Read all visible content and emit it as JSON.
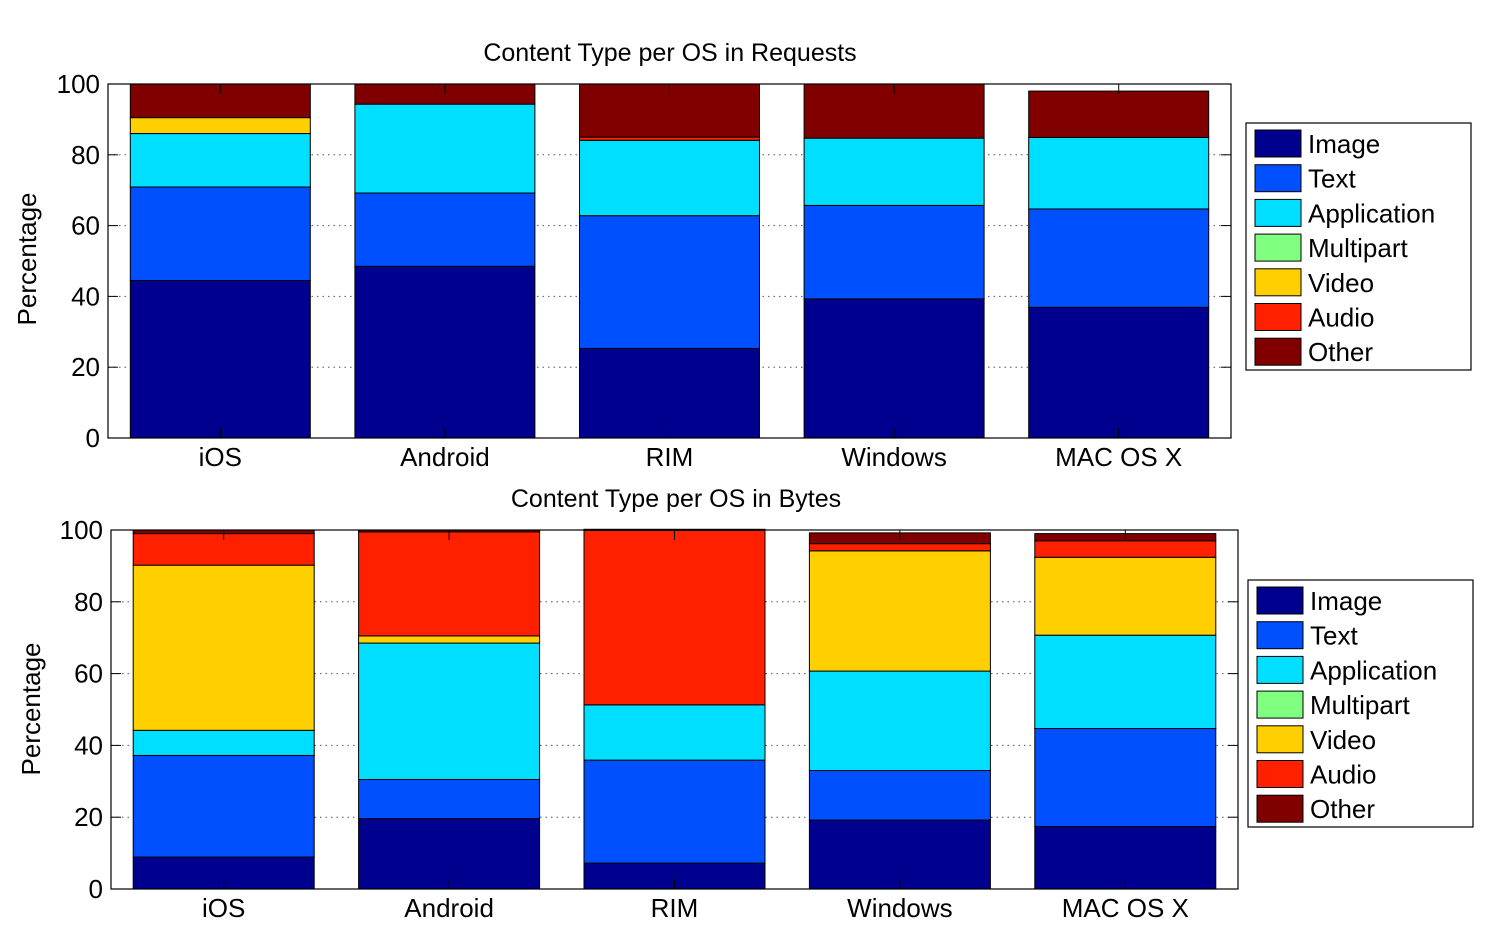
{
  "colors": {
    "Image": "#00008f",
    "Text": "#0050ff",
    "Application": "#00dfff",
    "Multipart": "#80ff80",
    "Video": "#ffcf00",
    "Audio": "#ff2000",
    "Other": "#800000"
  },
  "chart_data": [
    {
      "type": "bar",
      "stacked": true,
      "title": "Content Type per OS in Requests",
      "xlabel": "",
      "ylabel": "Percentage",
      "ylim": [
        0,
        100
      ],
      "yticks": [
        0,
        20,
        40,
        60,
        80,
        100
      ],
      "grid": "dotted-horizontal",
      "legend_position": "right",
      "categories": [
        "iOS",
        "Android",
        "RIM",
        "Windows",
        "MAC OS X"
      ],
      "series": [
        {
          "name": "Image",
          "values": [
            44.5,
            48.5,
            25.3,
            39.3,
            36.9
          ]
        },
        {
          "name": "Text",
          "values": [
            26.4,
            20.7,
            37.5,
            26.4,
            27.8
          ]
        },
        {
          "name": "Application",
          "values": [
            15.1,
            25.1,
            21.3,
            19.0,
            20.2
          ]
        },
        {
          "name": "Multipart",
          "values": [
            0,
            0,
            0,
            0,
            0
          ]
        },
        {
          "name": "Video",
          "values": [
            4.5,
            0,
            0,
            0,
            0
          ]
        },
        {
          "name": "Audio",
          "values": [
            0,
            0,
            0.9,
            0,
            0
          ]
        },
        {
          "name": "Other",
          "values": [
            9.5,
            5.7,
            15.0,
            15.3,
            13.1
          ]
        }
      ]
    },
    {
      "type": "bar",
      "stacked": true,
      "title": "Content Type per OS in Bytes",
      "xlabel": "",
      "ylabel": "Percentage",
      "ylim": [
        0,
        100
      ],
      "yticks": [
        0,
        20,
        40,
        60,
        80,
        100
      ],
      "grid": "dotted-horizontal",
      "legend_position": "right",
      "categories": [
        "iOS",
        "Android",
        "RIM",
        "Windows",
        "MAC OS X"
      ],
      "series": [
        {
          "name": "Image",
          "values": [
            8.9,
            19.6,
            7.2,
            19.2,
            17.4
          ]
        },
        {
          "name": "Text",
          "values": [
            28.3,
            10.9,
            28.7,
            13.8,
            27.3
          ]
        },
        {
          "name": "Application",
          "values": [
            7.0,
            38.0,
            15.4,
            27.7,
            26.0
          ]
        },
        {
          "name": "Multipart",
          "values": [
            0,
            0,
            0,
            0,
            0
          ]
        },
        {
          "name": "Video",
          "values": [
            46.0,
            2.0,
            0,
            33.5,
            21.7
          ]
        },
        {
          "name": "Audio",
          "values": [
            8.8,
            29.0,
            48.6,
            2.0,
            4.6
          ]
        },
        {
          "name": "Other",
          "values": [
            1.0,
            0.5,
            0.3,
            3.0,
            2.0
          ]
        }
      ]
    }
  ]
}
